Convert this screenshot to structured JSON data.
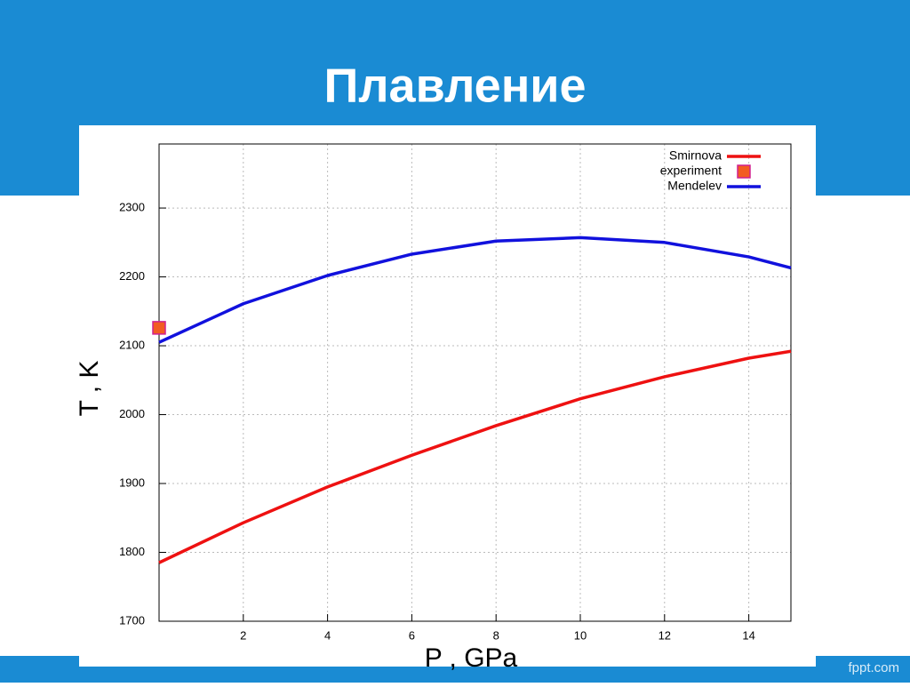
{
  "slide_title": "Плавление",
  "footer": "fppt.com",
  "chart_data": {
    "type": "line",
    "x_label": "P , GPa",
    "y_label": "T , K",
    "xlim": [
      0,
      15
    ],
    "ylim": [
      1700,
      2393
    ],
    "xticks": [
      2,
      4,
      6,
      8,
      10,
      12,
      14
    ],
    "yticks": [
      1700,
      1800,
      1900,
      2000,
      2100,
      2200,
      2300
    ],
    "grid": true,
    "legend": "top-right",
    "series": [
      {
        "name": "Smirnova",
        "color": "#ee1111",
        "mode": "line",
        "x": [
          0,
          2,
          4,
          6,
          8,
          10,
          12,
          14,
          15
        ],
        "values": [
          1785,
          1843,
          1895,
          1941,
          1984,
          2023,
          2055,
          2082,
          2092
        ]
      },
      {
        "name": "experiment",
        "color": "#f25c22",
        "mode": "marker",
        "x": [
          0
        ],
        "values": [
          2126
        ]
      },
      {
        "name": "Mendelev",
        "color": "#1111dd",
        "mode": "line",
        "x": [
          0,
          2,
          4,
          6,
          8,
          10,
          12,
          14,
          15
        ],
        "values": [
          2105,
          2161,
          2202,
          2233,
          2252,
          2257,
          2250,
          2229,
          2213
        ]
      }
    ]
  }
}
